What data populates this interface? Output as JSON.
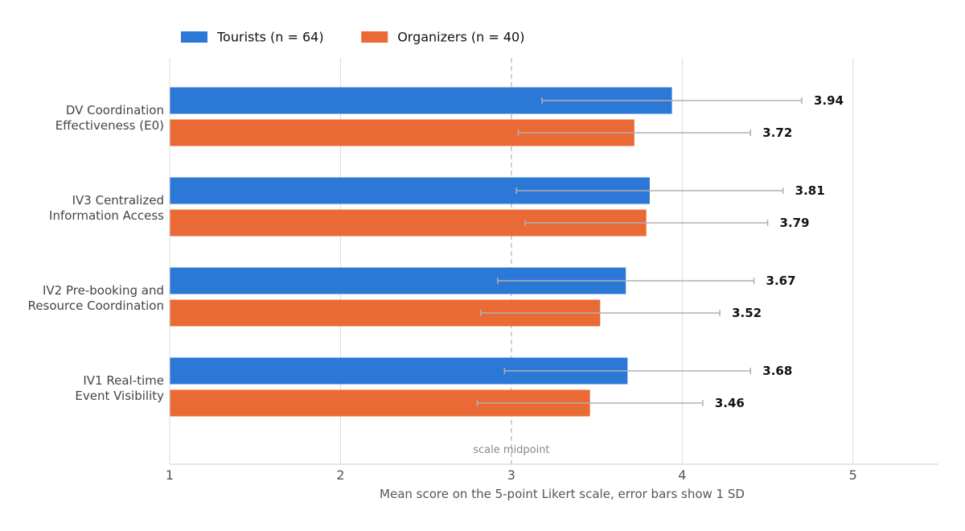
{
  "chart_data": {
    "type": "bar",
    "orientation": "horizontal",
    "categories": [
      [
        "DV Coordination",
        "Effectiveness (E0)"
      ],
      [
        "IV3 Centralized",
        "Information Access"
      ],
      [
        "IV2 Pre-booking and",
        "Resource Coordination"
      ],
      [
        "IV1 Real-time",
        "Event Visibility"
      ]
    ],
    "series": [
      {
        "name": "Tourists (n = 64)",
        "color": "#2c78d6",
        "values": [
          3.94,
          3.81,
          3.67,
          3.68
        ],
        "sd": [
          0.76,
          0.78,
          0.75,
          0.72
        ],
        "value_labels": [
          "3.94",
          "3.81",
          "3.67",
          "3.68"
        ]
      },
      {
        "name": "Organizers (n = 40)",
        "color": "#ea6a35",
        "values": [
          3.72,
          3.79,
          3.52,
          3.46
        ],
        "sd": [
          0.68,
          0.71,
          0.7,
          0.66
        ],
        "value_labels": [
          "3.72",
          "3.79",
          "3.52",
          "3.46"
        ]
      }
    ],
    "xlim": [
      1,
      5.5
    ],
    "xticks": [
      1,
      2,
      3,
      4,
      5
    ],
    "xtick_labels": [
      "1",
      "2",
      "3",
      "4",
      "5"
    ],
    "xlabel": "Mean score on the 5-point Likert scale, error bars show 1 SD",
    "reference_line": {
      "value": 3,
      "label": "scale midpoint",
      "style": "dashed"
    },
    "grid": "vertical",
    "legend_position": "top-left",
    "error_bar_color": "#b0b0b0"
  }
}
